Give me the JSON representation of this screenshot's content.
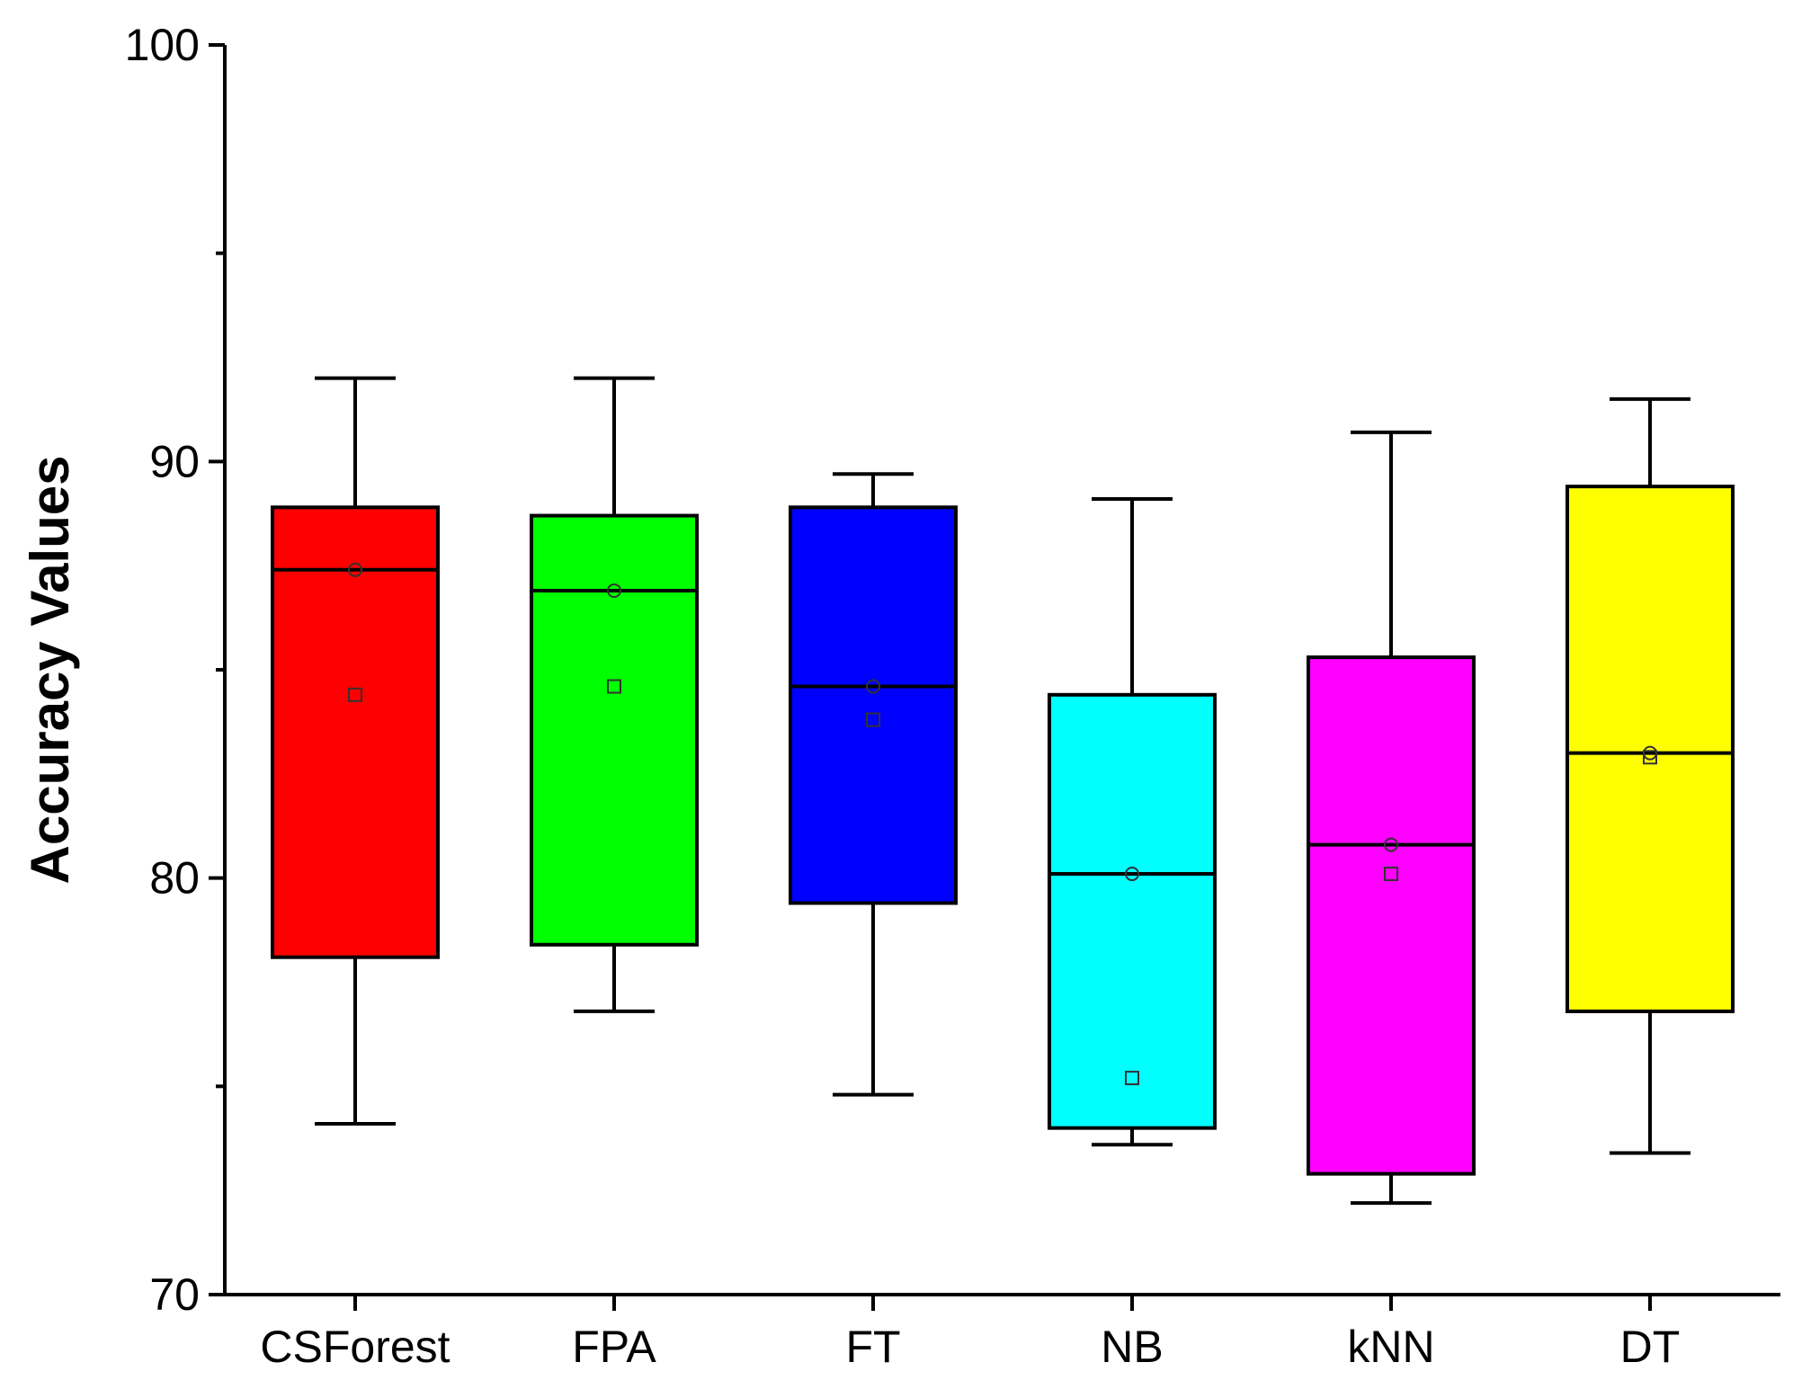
{
  "chart_data": {
    "type": "boxplot",
    "title": "",
    "xlabel": "",
    "ylabel": "Accuracy Values",
    "ylim": [
      70,
      100
    ],
    "yticks": [
      70,
      80,
      90,
      100
    ],
    "grid": false,
    "legend": "none",
    "categories": [
      "CSForest",
      "FPA",
      "FT",
      "NB",
      "kNN",
      "DT"
    ],
    "boxes": [
      {
        "name": "CSForest",
        "color": "#ff0000",
        "whisker_low": 74.1,
        "q1": 78.1,
        "median": 87.4,
        "q3": 88.9,
        "whisker_high": 92.0,
        "mean": 84.4,
        "median_marker": 87.4
      },
      {
        "name": "FPA",
        "color": "#00ff00",
        "whisker_low": 76.8,
        "q1": 78.4,
        "median": 86.9,
        "q3": 88.7,
        "whisker_high": 92.0,
        "mean": 84.6,
        "median_marker": 86.9
      },
      {
        "name": "FT",
        "color": "#0000ff",
        "whisker_low": 74.8,
        "q1": 79.4,
        "median": 84.6,
        "q3": 88.9,
        "whisker_high": 89.7,
        "mean": 83.8,
        "median_marker": 84.6
      },
      {
        "name": "NB",
        "color": "#00ffff",
        "whisker_low": 73.6,
        "q1": 74.0,
        "median": 80.1,
        "q3": 84.4,
        "whisker_high": 89.1,
        "mean": 75.2,
        "median_marker": 80.1
      },
      {
        "name": "kNN",
        "color": "#ff00ff",
        "whisker_low": 72.2,
        "q1": 72.9,
        "median": 80.8,
        "q3": 85.3,
        "whisker_high": 90.7,
        "mean": 80.1,
        "median_marker": 80.8
      },
      {
        "name": "DT",
        "color": "#ffff00",
        "whisker_low": 73.4,
        "q1": 76.8,
        "median": 83.0,
        "q3": 89.4,
        "whisker_high": 91.5,
        "mean": 82.9,
        "median_marker": 83.0
      }
    ]
  }
}
